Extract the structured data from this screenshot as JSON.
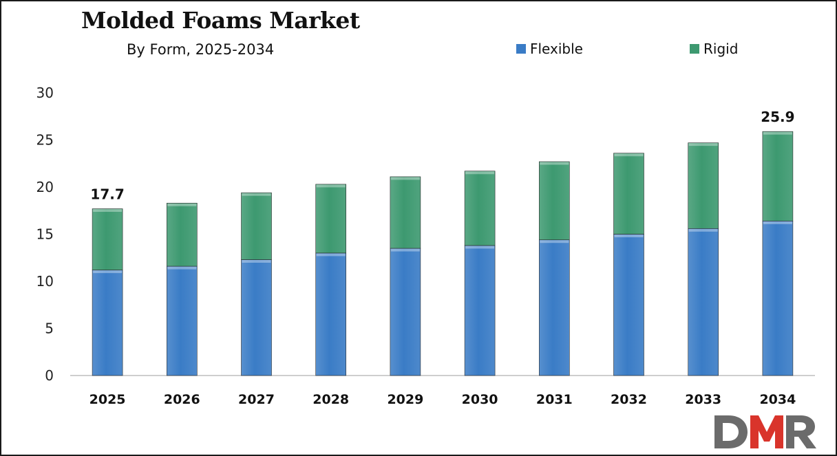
{
  "chart_data": {
    "type": "bar",
    "stacked": true,
    "title": "Molded Foams Market",
    "subtitle": "By Form, 2025-2034",
    "categories": [
      "2025",
      "2026",
      "2027",
      "2028",
      "2029",
      "2030",
      "2031",
      "2032",
      "2033",
      "2034"
    ],
    "series": [
      {
        "name": "Flexible",
        "color": "#3a7cc6",
        "values": [
          11.2,
          11.6,
          12.3,
          13.0,
          13.5,
          13.8,
          14.4,
          15.0,
          15.6,
          16.4
        ]
      },
      {
        "name": "Rigid",
        "color": "#3d9970",
        "values": [
          6.5,
          6.7,
          7.1,
          7.3,
          7.6,
          7.9,
          8.3,
          8.6,
          9.1,
          9.5
        ]
      }
    ],
    "data_labels": [
      {
        "category": "2025",
        "text": "17.7"
      },
      {
        "category": "2034",
        "text": "25.9"
      }
    ],
    "ylim": [
      0,
      30
    ],
    "yticks": [
      0,
      5,
      10,
      15,
      20,
      25,
      30
    ],
    "xlabel": "",
    "ylabel": "",
    "grid": false,
    "legend_position": "top-right"
  },
  "logo": {
    "text": "DMR",
    "colors": [
      "#6b6b6b",
      "#d9342b"
    ]
  }
}
